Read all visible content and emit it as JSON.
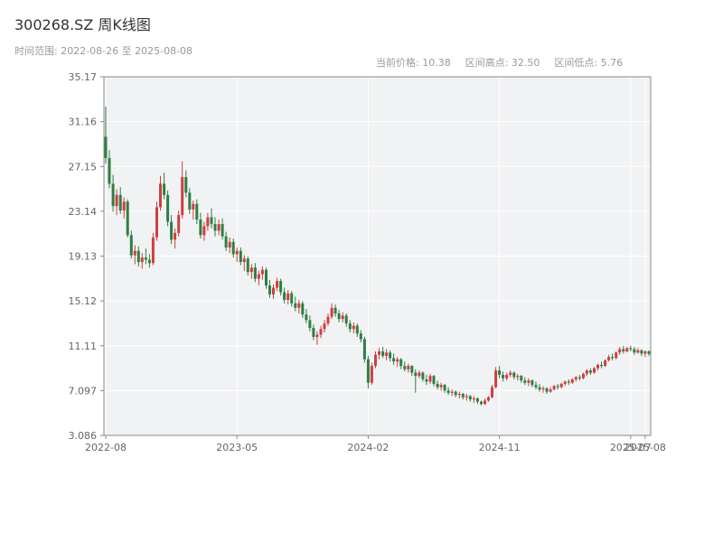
{
  "header": {
    "title": "300268.SZ 周K线图"
  },
  "meta": {
    "time_range": "时间范围: 2022-08-26 至 2025-08-08",
    "current_price_label": "当前价格:",
    "current_price_value": "10.38",
    "high_label": "区间高点:",
    "high_value": "32.50",
    "low_label": "区间低点:",
    "low_value": "5.76"
  },
  "chart_data": {
    "type": "candlestick",
    "title": "300268.SZ 周K线图",
    "period": "weekly",
    "x_range": [
      "2022-08-26",
      "2025-08-08"
    ],
    "current_price": 10.38,
    "range_high": 32.5,
    "range_low": 5.76,
    "y_min": 3.086,
    "y_max": 35.17,
    "y_ticks": [
      "35.17",
      "31.16",
      "27.15",
      "23.14",
      "19.13",
      "15.12",
      "11.11",
      "7.097",
      "3.086"
    ],
    "x_ticks": [
      {
        "label": "2022-08",
        "index": 0
      },
      {
        "label": "2023-05",
        "index": 36
      },
      {
        "label": "2024-02",
        "index": 72
      },
      {
        "label": "2024-11",
        "index": 108
      },
      {
        "label": "2025-07",
        "index": 144
      },
      {
        "label": "2025-08",
        "index": 148
      }
    ],
    "up_color": "#cf3f3f",
    "down_color": "#2f7e44",
    "plot_bg": "#f1f2f4",
    "grid_color": "#ffffff",
    "axis_color": "#888888",
    "label_color": "#666666",
    "candles_ohlc": [
      [
        29.8,
        32.5,
        27.4,
        27.9
      ],
      [
        27.9,
        28.6,
        25.2,
        25.6
      ],
      [
        25.6,
        26.4,
        23.1,
        23.6
      ],
      [
        23.6,
        25.1,
        22.8,
        24.6
      ],
      [
        24.6,
        25.3,
        22.9,
        23.2
      ],
      [
        23.2,
        24.4,
        22.5,
        24.0
      ],
      [
        24.0,
        24.2,
        20.8,
        21.0
      ],
      [
        21.0,
        21.4,
        18.9,
        19.2
      ],
      [
        19.2,
        20.1,
        18.4,
        19.6
      ],
      [
        19.6,
        20.0,
        18.2,
        18.6
      ],
      [
        18.6,
        19.4,
        18.0,
        19.0
      ],
      [
        19.0,
        19.8,
        18.4,
        18.8
      ],
      [
        18.8,
        19.3,
        18.1,
        18.5
      ],
      [
        18.5,
        21.2,
        18.3,
        20.8
      ],
      [
        20.8,
        24.0,
        20.5,
        23.5
      ],
      [
        23.5,
        26.3,
        23.2,
        25.6
      ],
      [
        25.6,
        26.6,
        24.2,
        24.6
      ],
      [
        24.6,
        25.0,
        21.8,
        22.2
      ],
      [
        22.2,
        22.8,
        20.2,
        20.6
      ],
      [
        20.6,
        21.6,
        19.8,
        21.2
      ],
      [
        21.2,
        23.2,
        20.9,
        22.8
      ],
      [
        22.8,
        27.6,
        22.5,
        26.2
      ],
      [
        26.2,
        26.8,
        24.4,
        24.8
      ],
      [
        24.8,
        25.2,
        22.9,
        23.3
      ],
      [
        23.3,
        24.1,
        22.4,
        23.8
      ],
      [
        23.8,
        24.2,
        22.0,
        22.4
      ],
      [
        22.4,
        23.0,
        20.7,
        21.0
      ],
      [
        21.0,
        22.2,
        20.5,
        21.8
      ],
      [
        21.8,
        23.0,
        21.4,
        22.6
      ],
      [
        22.6,
        23.4,
        21.6,
        22.0
      ],
      [
        22.0,
        22.6,
        20.9,
        21.4
      ],
      [
        21.4,
        22.4,
        21.0,
        22.0
      ],
      [
        22.0,
        22.5,
        20.6,
        20.9
      ],
      [
        20.9,
        21.3,
        19.6,
        19.9
      ],
      [
        19.9,
        20.8,
        19.4,
        20.4
      ],
      [
        20.4,
        20.7,
        19.0,
        19.3
      ],
      [
        19.3,
        19.9,
        18.6,
        19.6
      ],
      [
        19.6,
        19.9,
        18.3,
        18.6
      ],
      [
        18.6,
        19.2,
        17.8,
        18.9
      ],
      [
        18.9,
        19.1,
        17.4,
        17.7
      ],
      [
        17.7,
        18.4,
        17.1,
        18.1
      ],
      [
        18.1,
        18.5,
        16.8,
        17.1
      ],
      [
        17.1,
        17.8,
        16.5,
        17.5
      ],
      [
        17.5,
        18.2,
        17.0,
        17.9
      ],
      [
        17.9,
        18.1,
        16.2,
        16.5
      ],
      [
        16.5,
        17.0,
        15.4,
        15.7
      ],
      [
        15.7,
        16.6,
        15.3,
        16.3
      ],
      [
        16.3,
        17.2,
        16.0,
        16.9
      ],
      [
        16.9,
        17.1,
        15.6,
        15.9
      ],
      [
        15.9,
        16.3,
        14.9,
        15.2
      ],
      [
        15.2,
        16.1,
        14.8,
        15.8
      ],
      [
        15.8,
        16.0,
        14.6,
        14.9
      ],
      [
        14.9,
        15.5,
        14.2,
        14.5
      ],
      [
        14.5,
        15.2,
        14.0,
        14.9
      ],
      [
        14.9,
        15.1,
        13.6,
        13.9
      ],
      [
        13.9,
        14.4,
        13.1,
        13.4
      ],
      [
        13.4,
        13.8,
        12.4,
        12.7
      ],
      [
        12.7,
        13.0,
        11.6,
        11.9
      ],
      [
        11.9,
        12.4,
        11.2,
        12.1
      ],
      [
        12.1,
        12.9,
        11.8,
        12.6
      ],
      [
        12.6,
        13.4,
        12.3,
        13.1
      ],
      [
        13.1,
        14.0,
        12.9,
        13.7
      ],
      [
        13.7,
        14.9,
        13.5,
        14.5
      ],
      [
        14.5,
        14.8,
        13.7,
        14.0
      ],
      [
        14.0,
        14.3,
        13.2,
        13.5
      ],
      [
        13.5,
        14.1,
        13.2,
        13.8
      ],
      [
        13.8,
        14.0,
        12.8,
        13.1
      ],
      [
        13.1,
        13.4,
        12.3,
        12.6
      ],
      [
        12.6,
        13.2,
        12.2,
        12.9
      ],
      [
        12.9,
        13.1,
        11.9,
        12.2
      ],
      [
        12.2,
        12.5,
        11.4,
        11.7
      ],
      [
        11.7,
        11.9,
        9.6,
        9.9
      ],
      [
        9.9,
        10.2,
        7.3,
        7.8
      ],
      [
        7.8,
        9.6,
        7.6,
        9.3
      ],
      [
        9.3,
        10.6,
        9.1,
        10.3
      ],
      [
        10.3,
        10.9,
        9.9,
        10.6
      ],
      [
        10.6,
        11.0,
        10.0,
        10.2
      ],
      [
        10.2,
        10.8,
        9.8,
        10.5
      ],
      [
        10.5,
        10.7,
        9.7,
        10.0
      ],
      [
        10.0,
        10.4,
        9.4,
        9.7
      ],
      [
        9.7,
        10.1,
        9.2,
        9.9
      ],
      [
        9.9,
        10.0,
        9.0,
        9.3
      ],
      [
        9.3,
        9.7,
        8.8,
        9.0
      ],
      [
        9.0,
        9.5,
        8.7,
        9.3
      ],
      [
        9.3,
        9.4,
        8.4,
        8.7
      ],
      [
        8.7,
        9.0,
        6.9,
        8.4
      ],
      [
        8.4,
        8.9,
        8.2,
        8.7
      ],
      [
        8.7,
        8.8,
        7.9,
        8.1
      ],
      [
        8.1,
        8.5,
        7.6,
        7.9
      ],
      [
        7.9,
        8.6,
        7.7,
        8.4
      ],
      [
        8.4,
        8.5,
        7.5,
        7.7
      ],
      [
        7.7,
        8.0,
        7.2,
        7.4
      ],
      [
        7.4,
        7.8,
        7.1,
        7.6
      ],
      [
        7.6,
        7.7,
        6.9,
        7.1
      ],
      [
        7.1,
        7.4,
        6.7,
        6.9
      ],
      [
        6.9,
        7.2,
        6.6,
        7.0
      ],
      [
        7.0,
        7.1,
        6.5,
        6.7
      ],
      [
        6.7,
        7.0,
        6.4,
        6.8
      ],
      [
        6.8,
        6.9,
        6.3,
        6.5
      ],
      [
        6.5,
        6.8,
        6.2,
        6.6
      ],
      [
        6.6,
        6.7,
        6.1,
        6.3
      ],
      [
        6.3,
        6.6,
        6.0,
        6.4
      ],
      [
        6.4,
        6.5,
        5.9,
        6.1
      ],
      [
        6.1,
        6.2,
        5.76,
        5.9
      ],
      [
        5.9,
        6.4,
        5.8,
        6.2
      ],
      [
        6.2,
        6.6,
        6.1,
        6.5
      ],
      [
        6.5,
        7.6,
        6.4,
        7.4
      ],
      [
        7.4,
        9.2,
        7.3,
        8.9
      ],
      [
        8.9,
        9.3,
        8.2,
        8.5
      ],
      [
        8.5,
        8.8,
        7.9,
        8.2
      ],
      [
        8.2,
        8.7,
        8.0,
        8.5
      ],
      [
        8.5,
        8.9,
        8.3,
        8.7
      ],
      [
        8.7,
        8.8,
        8.1,
        8.3
      ],
      [
        8.3,
        8.6,
        8.0,
        8.4
      ],
      [
        8.4,
        8.5,
        7.8,
        8.0
      ],
      [
        8.0,
        8.3,
        7.6,
        7.8
      ],
      [
        7.8,
        8.2,
        7.5,
        8.0
      ],
      [
        8.0,
        8.1,
        7.4,
        7.6
      ],
      [
        7.6,
        7.9,
        7.2,
        7.4
      ],
      [
        7.4,
        7.7,
        7.0,
        7.2
      ],
      [
        7.2,
        7.5,
        6.9,
        7.3
      ],
      [
        7.3,
        7.4,
        6.8,
        7.0
      ],
      [
        7.0,
        7.4,
        6.9,
        7.2
      ],
      [
        7.2,
        7.6,
        7.1,
        7.5
      ],
      [
        7.5,
        7.7,
        7.2,
        7.4
      ],
      [
        7.4,
        7.8,
        7.3,
        7.7
      ],
      [
        7.7,
        8.0,
        7.5,
        7.9
      ],
      [
        7.9,
        8.1,
        7.6,
        7.8
      ],
      [
        7.8,
        8.2,
        7.7,
        8.1
      ],
      [
        8.1,
        8.4,
        7.9,
        8.3
      ],
      [
        8.3,
        8.5,
        8.0,
        8.2
      ],
      [
        8.2,
        8.7,
        8.1,
        8.6
      ],
      [
        8.6,
        9.0,
        8.4,
        8.9
      ],
      [
        8.9,
        9.1,
        8.5,
        8.7
      ],
      [
        8.7,
        9.2,
        8.6,
        9.1
      ],
      [
        9.1,
        9.5,
        8.9,
        9.4
      ],
      [
        9.4,
        9.7,
        9.1,
        9.3
      ],
      [
        9.3,
        9.9,
        9.2,
        9.8
      ],
      [
        9.8,
        10.3,
        9.7,
        10.1
      ],
      [
        10.1,
        10.4,
        9.8,
        10.0
      ],
      [
        10.0,
        10.6,
        9.9,
        10.5
      ],
      [
        10.5,
        11.0,
        10.3,
        10.8
      ],
      [
        10.8,
        11.1,
        10.4,
        10.6
      ],
      [
        10.6,
        11.0,
        10.5,
        10.9
      ],
      [
        10.9,
        11.1,
        10.6,
        10.8
      ],
      [
        10.8,
        11.0,
        10.3,
        10.5
      ],
      [
        10.5,
        10.9,
        10.4,
        10.7
      ],
      [
        10.7,
        10.8,
        10.2,
        10.4
      ],
      [
        10.4,
        10.7,
        10.1,
        10.6
      ],
      [
        10.6,
        10.7,
        10.2,
        10.38
      ]
    ]
  }
}
